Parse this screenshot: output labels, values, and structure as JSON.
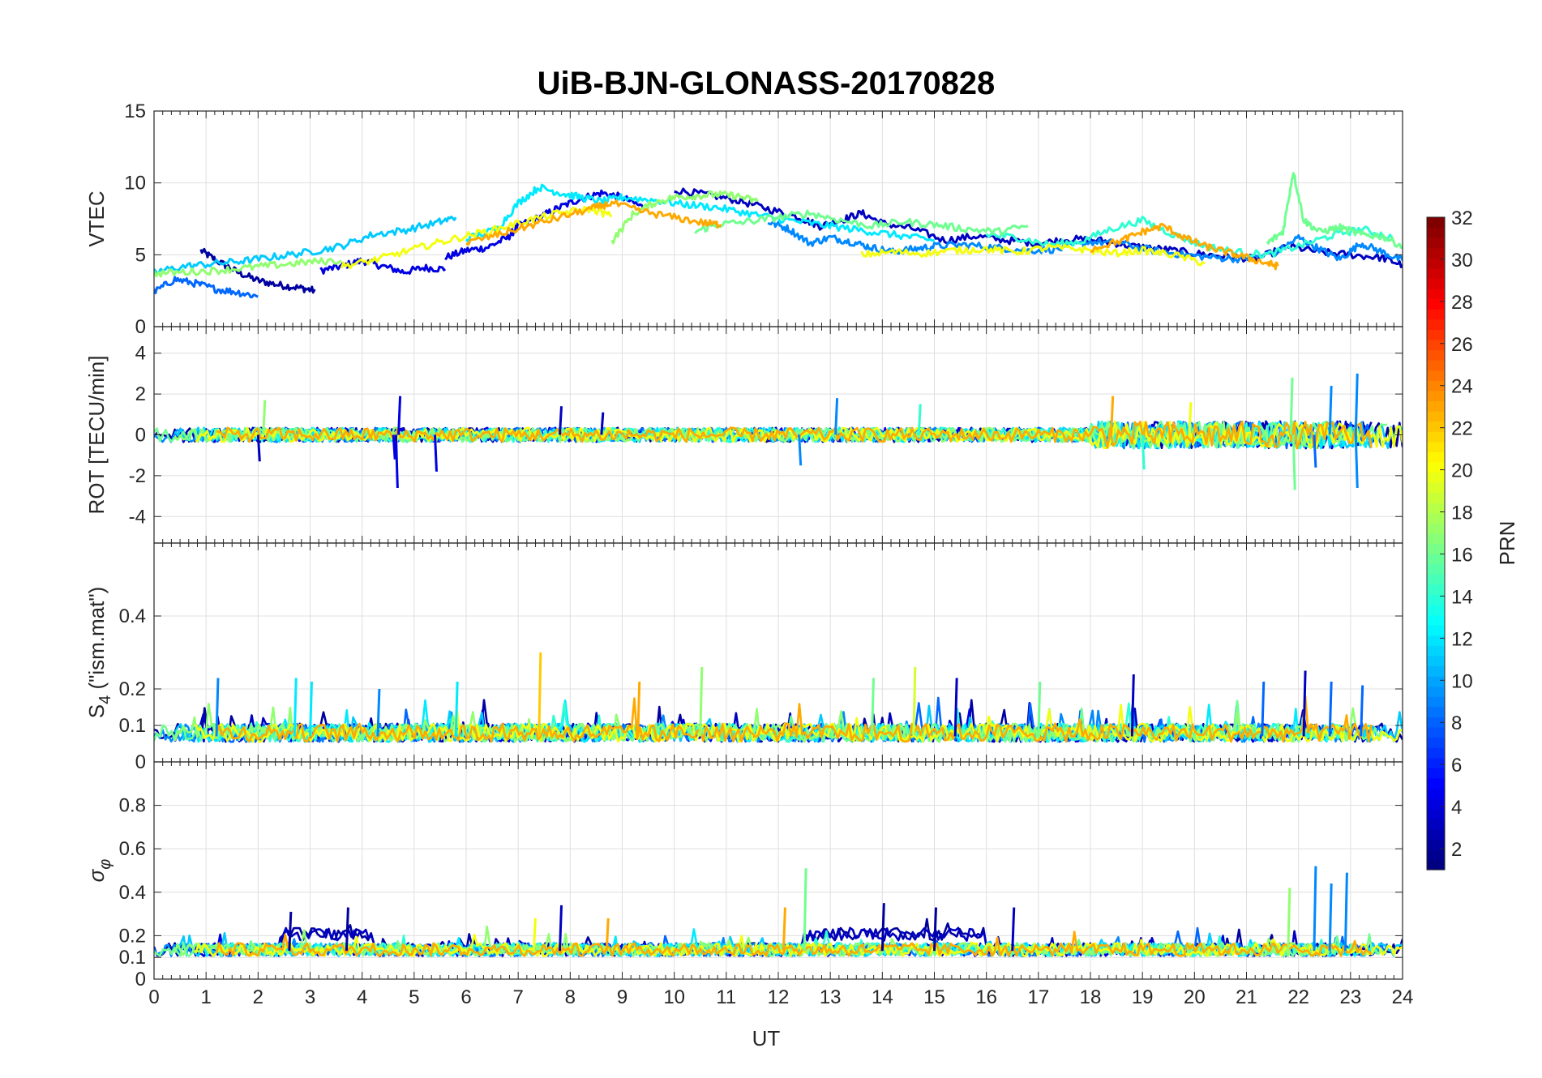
{
  "title": "UiB-BJN-GLONASS-20170828",
  "chart_data": {
    "type": "line",
    "title": "UiB-BJN-GLONASS-20170828",
    "xlabel": "UT",
    "xlim": [
      0,
      24
    ],
    "xticks": [
      "0",
      "1",
      "2",
      "3",
      "4",
      "5",
      "6",
      "7",
      "8",
      "9",
      "10",
      "11",
      "12",
      "13",
      "14",
      "15",
      "16",
      "17",
      "18",
      "19",
      "20",
      "21",
      "22",
      "23",
      "24"
    ],
    "grid": true,
    "colorbar": {
      "label": "PRN",
      "range": [
        1,
        32
      ],
      "ticks": [
        "2",
        "4",
        "6",
        "8",
        "10",
        "12",
        "14",
        "16",
        "18",
        "20",
        "22",
        "24",
        "26",
        "28",
        "30",
        "32"
      ],
      "colormap": "jet"
    },
    "panels": [
      {
        "id": "vtec",
        "ylabel": "VTEC",
        "ylim": [
          0,
          15
        ],
        "yticks": [
          "0",
          "5",
          "10",
          "15"
        ],
        "series": [
          {
            "prn": 2,
            "x": [
              0.9,
              1.2,
              1.6,
              2.0,
              2.4,
              2.8,
              3.1
            ],
            "y": [
              5.3,
              4.6,
              3.8,
              3.2,
              2.9,
              2.7,
              2.5
            ]
          },
          {
            "prn": 4,
            "x": [
              3.2,
              3.6,
              4.0,
              4.4,
              4.8,
              5.2,
              5.6
            ],
            "y": [
              3.9,
              4.2,
              4.6,
              4.2,
              3.8,
              4.1,
              4.0
            ]
          },
          {
            "prn": 4,
            "x": [
              5.6,
              6.0,
              6.4,
              6.8,
              7.0,
              7.4,
              7.8,
              8.2,
              8.6,
              9.0,
              9.4
            ],
            "y": [
              4.8,
              5.3,
              5.5,
              6.2,
              7.0,
              7.6,
              8.3,
              8.9,
              9.3,
              9.0,
              8.3
            ]
          },
          {
            "prn": 3,
            "x": [
              10.0,
              10.6,
              11.2,
              11.8,
              12.4,
              12.8,
              13.2,
              13.6,
              14.0,
              14.6,
              15.2,
              15.8,
              16.4,
              17.0,
              17.6,
              18.2,
              18.8,
              19.4,
              20.0,
              20.6,
              21.2,
              21.8,
              22.4,
              23.0,
              23.6,
              24.0
            ],
            "y": [
              9.5,
              9.2,
              8.8,
              8.2,
              7.6,
              7.0,
              7.4,
              7.9,
              7.2,
              6.8,
              6.0,
              6.3,
              6.0,
              5.8,
              6.1,
              6.0,
              5.6,
              5.4,
              5.1,
              4.9,
              4.7,
              5.6,
              5.2,
              5.0,
              4.8,
              4.3
            ]
          },
          {
            "prn": 8,
            "x": [
              0.0,
              0.4,
              0.8,
              1.2,
              1.6,
              2.0
            ],
            "y": [
              2.4,
              3.3,
              3.0,
              2.6,
              2.4,
              2.1
            ]
          },
          {
            "prn": 9,
            "x": [
              11.8,
              12.2,
              12.6,
              13.0,
              13.4,
              13.8,
              14.2,
              14.6,
              15.0,
              15.6,
              16.2,
              16.8,
              17.4,
              18.0,
              18.6,
              19.2,
              19.8,
              20.4,
              21.0,
              21.6,
              22.0,
              22.4,
              22.8,
              23.2,
              23.6,
              24.0
            ],
            "y": [
              7.3,
              6.8,
              5.8,
              6.2,
              5.9,
              5.5,
              5.2,
              5.4,
              5.6,
              5.7,
              5.5,
              5.3,
              5.4,
              5.9,
              5.8,
              5.3,
              5.0,
              4.8,
              4.7,
              5.2,
              6.2,
              5.4,
              4.7,
              5.8,
              5.2,
              4.6
            ]
          },
          {
            "prn": 11,
            "x": [
              0.0,
              0.6,
              1.2,
              1.8,
              2.4,
              3.0,
              3.6,
              4.2,
              4.8,
              5.4,
              5.8
            ],
            "y": [
              3.8,
              4.2,
              4.4,
              4.6,
              4.9,
              5.2,
              5.6,
              6.4,
              6.7,
              7.2,
              7.6
            ]
          },
          {
            "prn": 12,
            "x": [
              6.0,
              6.6,
              7.0,
              7.4,
              7.8,
              8.2,
              8.6,
              9.0,
              9.6,
              10.2,
              10.8,
              11.4,
              12.0,
              12.6,
              13.2,
              13.8,
              14.4,
              15.0
            ],
            "y": [
              6.1,
              6.8,
              8.6,
              9.7,
              9.3,
              9.0,
              8.7,
              9.0,
              8.8,
              8.5,
              8.3,
              7.9,
              7.5,
              7.2,
              6.9,
              6.6,
              6.3,
              6.0
            ]
          },
          {
            "prn": 14,
            "x": [
              16.0,
              16.6,
              17.2,
              17.8,
              18.4,
              19.0,
              19.6,
              20.2,
              20.8,
              21.4,
              22.0,
              22.6,
              23.2,
              23.8
            ],
            "y": [
              6.4,
              6.2,
              5.7,
              5.9,
              6.8,
              7.4,
              6.4,
              5.6,
              5.2,
              5.0,
              5.6,
              6.3,
              6.8,
              6.2
            ]
          },
          {
            "prn": 17,
            "x": [
              0.0,
              0.6,
              1.2,
              1.8,
              2.4,
              3.0,
              3.6
            ],
            "y": [
              3.7,
              3.8,
              3.9,
              4.1,
              4.3,
              4.5,
              4.6
            ]
          },
          {
            "prn": 17,
            "x": [
              8.8,
              9.2,
              9.6,
              10.0,
              10.4,
              10.8,
              11.2,
              11.6
            ],
            "y": [
              5.9,
              7.8,
              8.6,
              9.0,
              9.1,
              9.2,
              9.1,
              8.7
            ]
          },
          {
            "prn": 16,
            "x": [
              10.4,
              10.8,
              11.4,
              12.0,
              12.6,
              13.2,
              13.8,
              14.4,
              15.0,
              15.6,
              16.2,
              16.8
            ],
            "y": [
              6.6,
              7.1,
              7.3,
              7.6,
              7.9,
              7.4,
              7.0,
              7.3,
              7.1,
              6.8,
              6.6,
              7.0
            ]
          },
          {
            "prn": 16,
            "x": [
              21.4,
              21.7,
              21.9,
              22.1,
              22.4,
              22.8,
              23.2,
              23.6,
              24.0
            ],
            "y": [
              5.8,
              6.6,
              10.8,
              7.4,
              6.6,
              6.9,
              6.4,
              6.3,
              5.6
            ]
          },
          {
            "prn": 20,
            "x": [
              3.6,
              4.2,
              4.8,
              5.4,
              6.0,
              6.6,
              7.2,
              7.8,
              8.4,
              8.8
            ],
            "y": [
              4.2,
              4.6,
              5.2,
              5.8,
              6.3,
              6.8,
              7.4,
              7.9,
              8.2,
              7.7
            ]
          },
          {
            "prn": 20,
            "x": [
              13.6,
              14.2,
              14.8,
              15.4,
              16.0,
              16.6,
              17.2,
              17.8,
              18.4,
              19.0,
              19.6,
              20.2
            ],
            "y": [
              5.0,
              5.2,
              5.1,
              5.3,
              5.4,
              5.2,
              5.5,
              5.4,
              5.1,
              5.3,
              5.0,
              4.4
            ]
          },
          {
            "prn": 23,
            "x": [
              6.0,
              6.6,
              7.2,
              7.8,
              8.4,
              8.8,
              9.4,
              10.0,
              10.6,
              10.9
            ],
            "y": [
              5.8,
              6.4,
              7.0,
              7.6,
              8.2,
              8.6,
              8.0,
              7.6,
              7.2,
              7.1
            ]
          },
          {
            "prn": 23,
            "x": [
              18.0,
              18.6,
              19.0,
              19.4,
              19.8,
              20.2,
              20.6,
              21.0,
              21.4,
              21.6
            ],
            "y": [
              5.4,
              6.0,
              6.6,
              7.0,
              6.2,
              5.6,
              5.2,
              4.8,
              4.4,
              4.2
            ]
          }
        ]
      },
      {
        "id": "rot",
        "ylabel": "ROT [TECU/min]",
        "ylim": [
          -5.3,
          5.3
        ],
        "yticks": [
          "-4",
          "-2",
          "0",
          "2",
          "4"
        ],
        "spikes": [
          {
            "prn": 4,
            "x": 4.65,
            "y": -2.6
          },
          {
            "prn": 4,
            "x": 4.7,
            "y": 1.9
          },
          {
            "prn": 4,
            "x": 5.4,
            "y": -1.8
          },
          {
            "prn": 4,
            "x": 4.6,
            "y": -1.2
          },
          {
            "prn": 3,
            "x": 7.8,
            "y": 1.4
          },
          {
            "prn": 3,
            "x": 8.6,
            "y": 1.1
          },
          {
            "prn": 9,
            "x": 12.4,
            "y": -1.5
          },
          {
            "prn": 9,
            "x": 13.1,
            "y": 1.8
          },
          {
            "prn": 14,
            "x": 14.7,
            "y": 1.5
          },
          {
            "prn": 23,
            "x": 18.4,
            "y": 1.9
          },
          {
            "prn": 14,
            "x": 19.0,
            "y": -1.7
          },
          {
            "prn": 20,
            "x": 19.9,
            "y": 1.6
          },
          {
            "prn": 16,
            "x": 21.9,
            "y": -2.7
          },
          {
            "prn": 16,
            "x": 21.85,
            "y": 2.8
          },
          {
            "prn": 9,
            "x": 22.6,
            "y": 2.4
          },
          {
            "prn": 9,
            "x": 23.1,
            "y": 3.0
          },
          {
            "prn": 9,
            "x": 23.1,
            "y": -2.6
          },
          {
            "prn": 8,
            "x": 22.3,
            "y": -1.6
          },
          {
            "prn": 17,
            "x": 2.1,
            "y": 1.7
          },
          {
            "prn": 3,
            "x": 2.0,
            "y": -1.3
          }
        ],
        "noise_amplitude": 0.35
      },
      {
        "id": "s4",
        "ylabel": "S4 (\"ism.mat\")",
        "ylim": [
          0,
          0.6
        ],
        "yticks": [
          "0",
          "0.1",
          "0.2",
          "0.4"
        ],
        "spikes": [
          {
            "prn": 9,
            "x": 1.2,
            "y": 0.23
          },
          {
            "prn": 12,
            "x": 2.7,
            "y": 0.23
          },
          {
            "prn": 12,
            "x": 3.0,
            "y": 0.22
          },
          {
            "prn": 9,
            "x": 4.3,
            "y": 0.2
          },
          {
            "prn": 12,
            "x": 5.8,
            "y": 0.22
          },
          {
            "prn": 22,
            "x": 7.4,
            "y": 0.3
          },
          {
            "prn": 23,
            "x": 9.3,
            "y": 0.22
          },
          {
            "prn": 17,
            "x": 10.5,
            "y": 0.26
          },
          {
            "prn": 16,
            "x": 13.8,
            "y": 0.23
          },
          {
            "prn": 19,
            "x": 14.6,
            "y": 0.26
          },
          {
            "prn": 3,
            "x": 15.4,
            "y": 0.23
          },
          {
            "prn": 16,
            "x": 17.0,
            "y": 0.22
          },
          {
            "prn": 3,
            "x": 18.8,
            "y": 0.24
          },
          {
            "prn": 8,
            "x": 21.3,
            "y": 0.22
          },
          {
            "prn": 3,
            "x": 22.1,
            "y": 0.25
          },
          {
            "prn": 8,
            "x": 22.6,
            "y": 0.22
          },
          {
            "prn": 8,
            "x": 23.2,
            "y": 0.21
          }
        ],
        "baseline": 0.07
      },
      {
        "id": "sigma_phi",
        "ylabel": "σφ",
        "ylim": [
          0,
          1
        ],
        "yticks": [
          "0",
          "0.1",
          "0.2",
          "0.4",
          "0.6",
          "0.8"
        ],
        "spikes": [
          {
            "prn": 2,
            "x": 2.6,
            "y": 0.31
          },
          {
            "prn": 2,
            "x": 3.7,
            "y": 0.33
          },
          {
            "prn": 20,
            "x": 7.3,
            "y": 0.28
          },
          {
            "prn": 3,
            "x": 7.8,
            "y": 0.34
          },
          {
            "prn": 23,
            "x": 8.7,
            "y": 0.28
          },
          {
            "prn": 23,
            "x": 12.1,
            "y": 0.33
          },
          {
            "prn": 16,
            "x": 12.5,
            "y": 0.51
          },
          {
            "prn": 2,
            "x": 14.0,
            "y": 0.35
          },
          {
            "prn": 2,
            "x": 15.0,
            "y": 0.33
          },
          {
            "prn": 3,
            "x": 16.5,
            "y": 0.33
          },
          {
            "prn": 17,
            "x": 21.8,
            "y": 0.42
          },
          {
            "prn": 9,
            "x": 22.3,
            "y": 0.52
          },
          {
            "prn": 9,
            "x": 22.9,
            "y": 0.49
          },
          {
            "prn": 9,
            "x": 22.6,
            "y": 0.44
          }
        ],
        "baseline": 0.13
      }
    ]
  }
}
